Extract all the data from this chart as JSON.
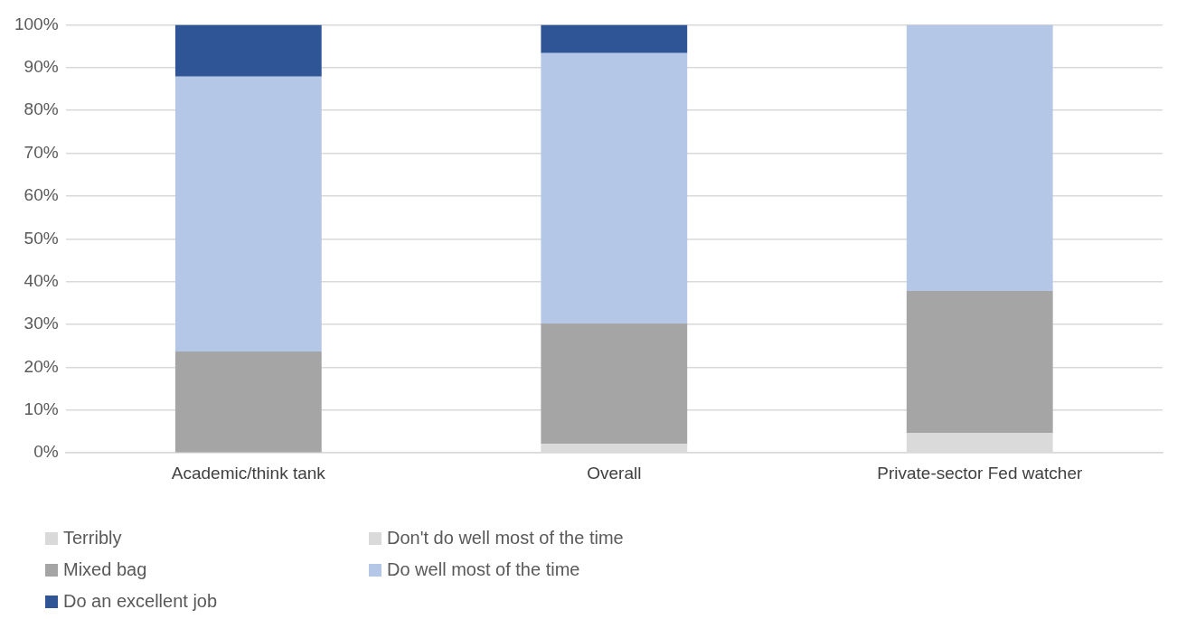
{
  "chart_data": {
    "type": "bar",
    "stacked": true,
    "categories": [
      "Academic/think tank",
      "Overall",
      "Private-sector Fed watcher"
    ],
    "series": [
      {
        "name": "Terribly",
        "color": "#d9d9d9",
        "values": [
          0,
          0,
          0
        ]
      },
      {
        "name": "Don't do well most of the time",
        "color": "#dadada",
        "values": [
          0,
          2.1,
          4.7
        ]
      },
      {
        "name": "Mixed bag",
        "color": "#a5a5a5",
        "values": [
          23.7,
          28.1,
          33.1
        ]
      },
      {
        "name": "Do well most of the time",
        "color": "#b4c7e7",
        "values": [
          64.2,
          63.2,
          62.2
        ]
      },
      {
        "name": "Do an excellent job",
        "color": "#2f5597",
        "values": [
          12.1,
          6.6,
          0
        ]
      }
    ],
    "ylim": [
      0,
      100
    ],
    "yticks": [
      {
        "value": 0,
        "label": "0%"
      },
      {
        "value": 10,
        "label": "10%"
      },
      {
        "value": 20,
        "label": "20%"
      },
      {
        "value": 30,
        "label": "30%"
      },
      {
        "value": 40,
        "label": "40%"
      },
      {
        "value": 50,
        "label": "50%"
      },
      {
        "value": 60,
        "label": "60%"
      },
      {
        "value": 70,
        "label": "70%"
      },
      {
        "value": 80,
        "label": "80%"
      },
      {
        "value": 90,
        "label": "90%"
      },
      {
        "value": 100,
        "label": "100%"
      }
    ],
    "grid": "y",
    "legend": "bottom"
  }
}
